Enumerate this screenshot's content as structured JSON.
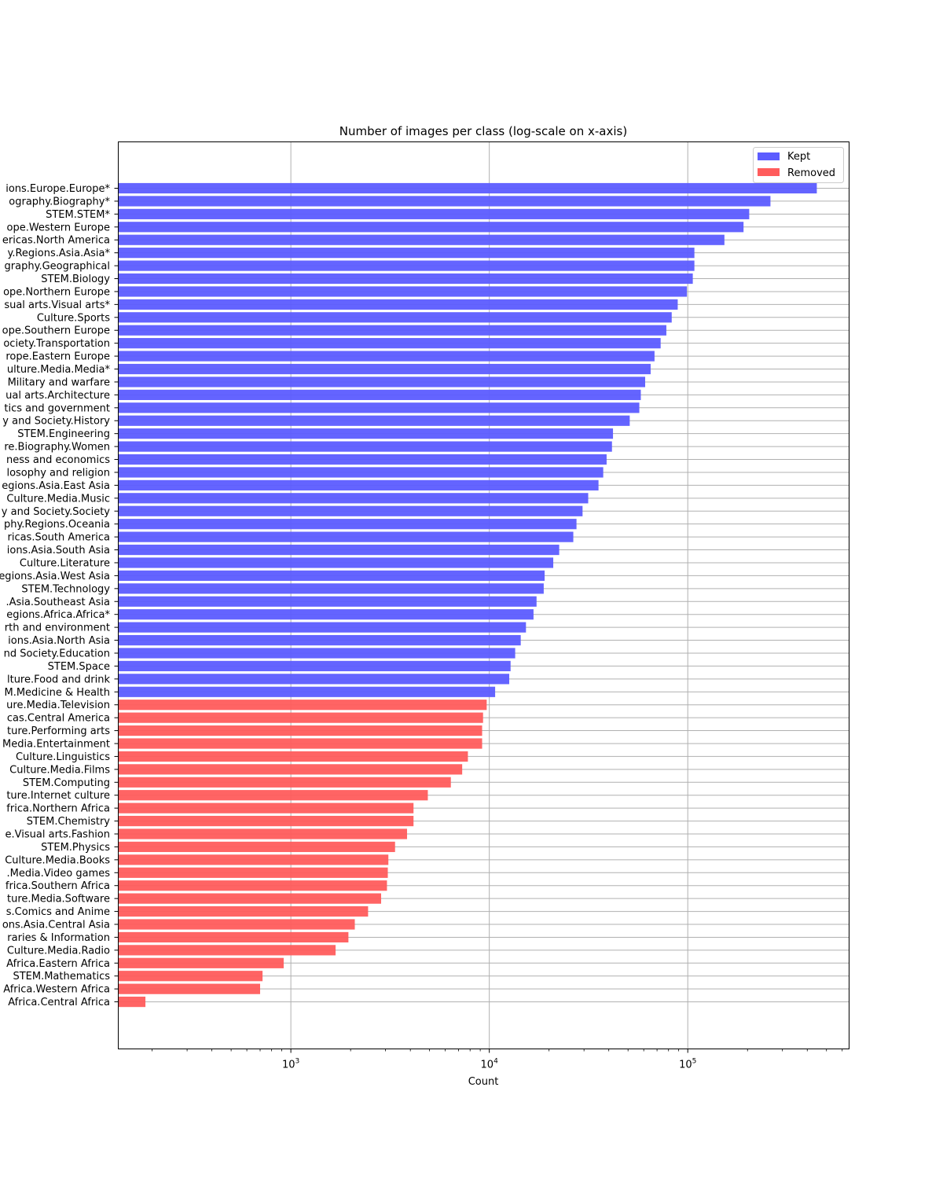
{
  "chart_data": {
    "type": "bar",
    "orientation": "horizontal",
    "title": "Number of images per class (log-scale on x-axis)",
    "xlabel": "Count",
    "ylabel": "",
    "xscale": "log",
    "xlim": [
      135,
      650000
    ],
    "xticks": [
      1000,
      10000,
      100000
    ],
    "xtick_labels": [
      {
        "base": "10",
        "exp": "3"
      },
      {
        "base": "10",
        "exp": "4"
      },
      {
        "base": "10",
        "exp": "5"
      }
    ],
    "grid": true,
    "legend_position": "top-right",
    "categories": [
      "ions.Europe.Europe*",
      "ography.Biography*",
      "STEM.STEM*",
      "ope.Western Europe",
      "ericas.North America",
      "y.Regions.Asia.Asia*",
      "graphy.Geographical",
      "STEM.Biology",
      "ope.Northern Europe",
      "sual arts.Visual arts*",
      "Culture.Sports",
      "ope.Southern Europe",
      "ociety.Transportation",
      "rope.Eastern Europe",
      "ulture.Media.Media*",
      "Military and warfare",
      "ual arts.Architecture",
      "tics and government",
      "y and Society.History",
      "STEM.Engineering",
      "re.Biography.Women",
      "ness and economics",
      "losophy and religion",
      "egions.Asia.East Asia",
      "Culture.Media.Music",
      "y and Society.Society",
      "phy.Regions.Oceania",
      "ricas.South America",
      "ions.Asia.South Asia",
      "Culture.Literature",
      "egions.Asia.West Asia",
      "STEM.Technology",
      ".Asia.Southeast Asia",
      "egions.Africa.Africa*",
      "rth and environment",
      "ions.Asia.North Asia",
      "nd Society.Education",
      "STEM.Space",
      "lture.Food and drink",
      "M.Medicine & Health",
      "ure.Media.Television",
      "cas.Central America",
      "ture.Performing arts",
      "Media.Entertainment",
      "Culture.Linguistics",
      "Culture.Media.Films",
      "STEM.Computing",
      "ture.Internet culture",
      "frica.Northern Africa",
      "STEM.Chemistry",
      "e.Visual arts.Fashion",
      "STEM.Physics",
      "Culture.Media.Books",
      ".Media.Video games",
      "frica.Southern Africa",
      "ture.Media.Software",
      "s.Comics and Anime",
      "ons.Asia.Central Asia",
      "raries & Information",
      "Culture.Media.Radio",
      "Africa.Eastern Africa",
      "STEM.Mathematics",
      "Africa.Western Africa",
      "Africa.Central Africa"
    ],
    "values": [
      447000,
      261000,
      204000,
      191000,
      153000,
      108000,
      108000,
      106000,
      99000,
      89000,
      83000,
      78000,
      73000,
      68000,
      65000,
      61000,
      58000,
      57000,
      51000,
      42000,
      41500,
      39000,
      37500,
      35500,
      31500,
      29500,
      27500,
      26500,
      22500,
      21000,
      19000,
      18800,
      17300,
      16700,
      15300,
      14400,
      13500,
      12800,
      12600,
      10700,
      9700,
      9300,
      9200,
      9200,
      7800,
      7300,
      6400,
      4900,
      4150,
      4150,
      3850,
      3350,
      3100,
      3080,
      3050,
      2850,
      2450,
      2100,
      1950,
      1680,
      920,
      720,
      700,
      185
    ],
    "status": [
      "Kept",
      "Kept",
      "Kept",
      "Kept",
      "Kept",
      "Kept",
      "Kept",
      "Kept",
      "Kept",
      "Kept",
      "Kept",
      "Kept",
      "Kept",
      "Kept",
      "Kept",
      "Kept",
      "Kept",
      "Kept",
      "Kept",
      "Kept",
      "Kept",
      "Kept",
      "Kept",
      "Kept",
      "Kept",
      "Kept",
      "Kept",
      "Kept",
      "Kept",
      "Kept",
      "Kept",
      "Kept",
      "Kept",
      "Kept",
      "Kept",
      "Kept",
      "Kept",
      "Kept",
      "Kept",
      "Kept",
      "Removed",
      "Removed",
      "Removed",
      "Removed",
      "Removed",
      "Removed",
      "Removed",
      "Removed",
      "Removed",
      "Removed",
      "Removed",
      "Removed",
      "Removed",
      "Removed",
      "Removed",
      "Removed",
      "Removed",
      "Removed",
      "Removed",
      "Removed",
      "Removed",
      "Removed",
      "Removed",
      "Removed"
    ],
    "series": [
      {
        "name": "Kept",
        "color": "#5c5cff"
      },
      {
        "name": "Removed",
        "color": "#ff5c5c"
      }
    ]
  }
}
